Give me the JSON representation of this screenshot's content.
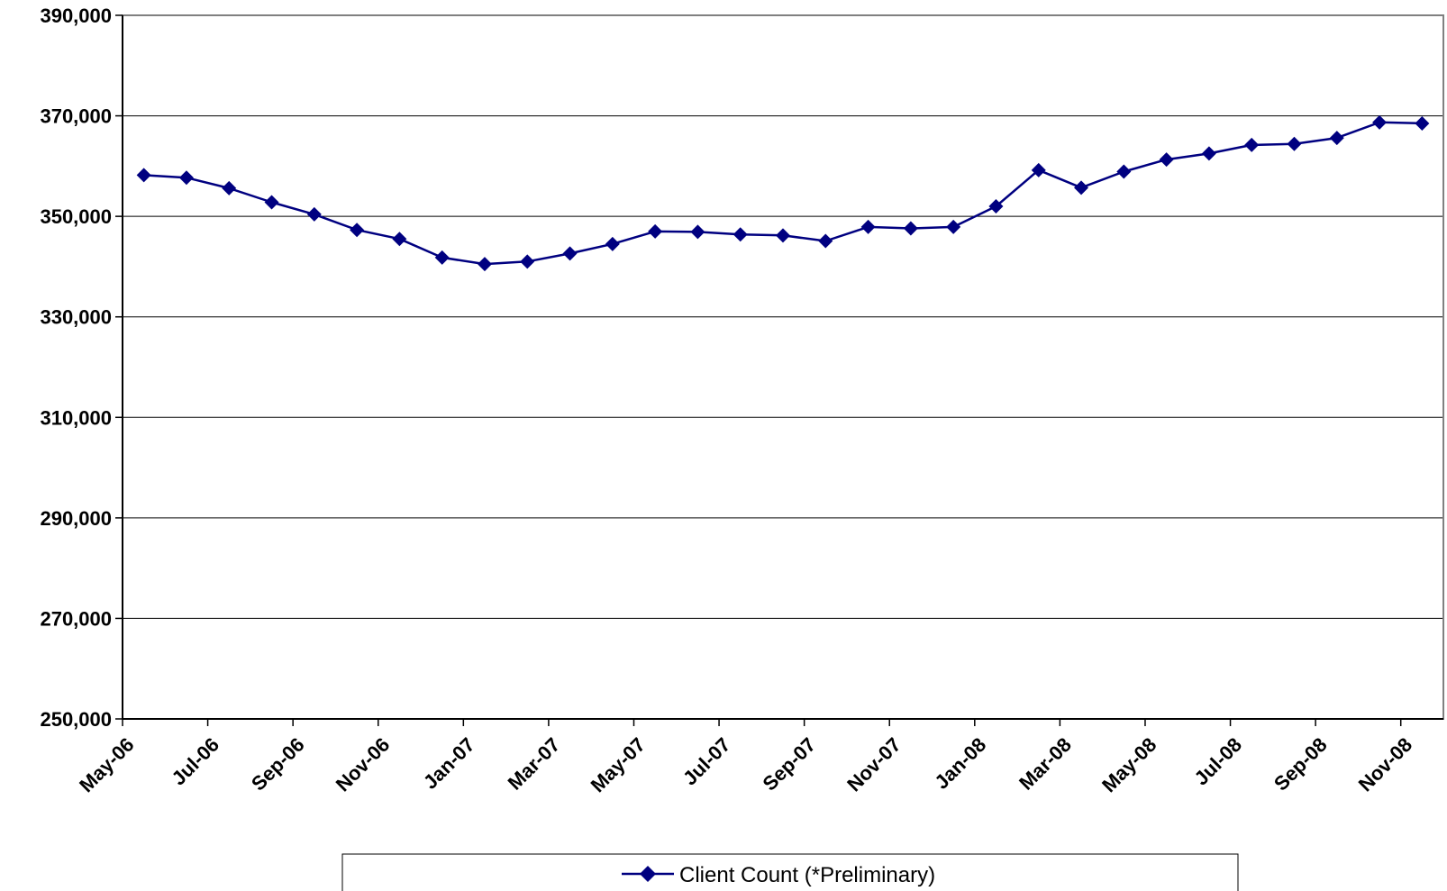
{
  "chart_data": {
    "type": "line",
    "title": "",
    "xlabel": "",
    "ylabel": "",
    "ylim": [
      250000,
      390000
    ],
    "y_ticks": [
      250000,
      270000,
      290000,
      310000,
      330000,
      350000,
      370000,
      390000
    ],
    "y_tick_labels": [
      "250,000",
      "270,000",
      "290,000",
      "310,000",
      "330,000",
      "350,000",
      "370,000",
      "390,000"
    ],
    "x_tick_labels": [
      "May-06",
      "Jul-06",
      "Sep-06",
      "Nov-06",
      "Jan-07",
      "Mar-07",
      "May-07",
      "Jul-07",
      "Sep-07",
      "Nov-07",
      "Jan-08",
      "Mar-08",
      "May-08",
      "Jul-08",
      "Sep-08",
      "Nov-08"
    ],
    "x": [
      "May-06",
      "Jun-06",
      "Jul-06",
      "Aug-06",
      "Sep-06",
      "Oct-06",
      "Nov-06",
      "Dec-06",
      "Jan-07",
      "Feb-07",
      "Mar-07",
      "Apr-07",
      "May-07",
      "Jun-07",
      "Jul-07",
      "Aug-07",
      "Sep-07",
      "Oct-07",
      "Nov-07",
      "Dec-07",
      "Jan-08",
      "Feb-08",
      "Mar-08",
      "Apr-08",
      "May-08",
      "Jun-08",
      "Jul-08",
      "Aug-08",
      "Sep-08",
      "Oct-08",
      "Nov-08"
    ],
    "series": [
      {
        "name": "Client Count (*Preliminary)",
        "color": "#000080",
        "marker": "diamond",
        "values": [
          358200,
          357700,
          355600,
          352800,
          350400,
          347300,
          345500,
          341800,
          340500,
          341000,
          342600,
          344500,
          347000,
          346900,
          346400,
          346200,
          345100,
          347900,
          347600,
          347900,
          352000,
          359200,
          355700,
          358900,
          361300,
          362500,
          364200,
          364400,
          365600,
          368700,
          368500
        ]
      }
    ],
    "grid": "horizontal",
    "legend_position": "bottom-center"
  }
}
